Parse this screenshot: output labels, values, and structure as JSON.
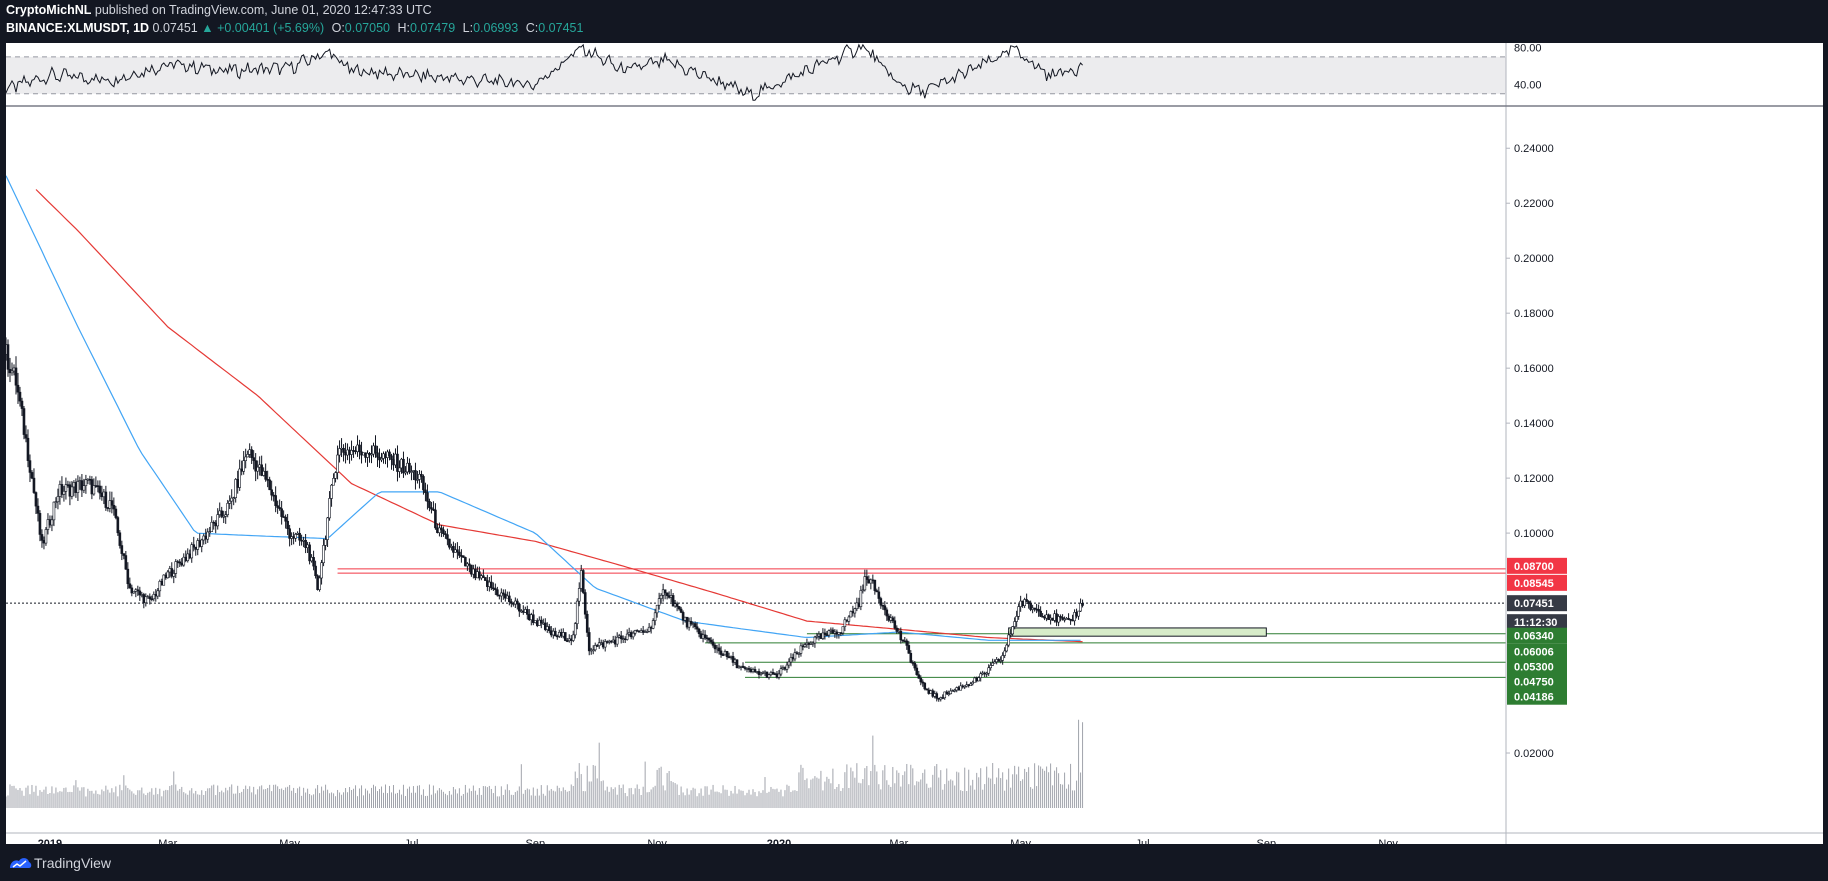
{
  "header": {
    "author": "CryptoMichNL",
    "published_text": "published on TradingView.com, June 01, 2020 12:47:33 UTC",
    "symbol": "BINANCE:XLMUSDT, 1D",
    "last": "0.07451",
    "arrow": "▲",
    "change": "+0.00401 (+5.69%)",
    "o_label": "O:",
    "o_value": "0.07050",
    "h_label": "H:",
    "h_value": "0.07479",
    "l_label": "L:",
    "l_value": "0.06993",
    "c_label": "C:",
    "c_value": "0.07451"
  },
  "footer": {
    "brand": "TradingView",
    "logo_icon": "tradingview-logo-icon"
  },
  "colors": {
    "background": "#131722",
    "pane": "#ffffff",
    "ma_red": "#e53935",
    "ma_blue": "#42a5f5",
    "resistance": "#f23645",
    "support": "#2e7d32",
    "price_label": "#363a45"
  },
  "chart_data": [
    {
      "type": "line",
      "title": "",
      "indicator": "RSI",
      "ylim": [
        20,
        85
      ],
      "y_ticks": [
        "80.00",
        "40.00"
      ],
      "bands": [
        30,
        70
      ],
      "x": [
        "2018-12-10",
        "2019-01-01",
        "2019-02-01",
        "2019-03-01",
        "2019-04-01",
        "2019-05-01",
        "2019-05-20",
        "2019-06-01",
        "2019-07-01",
        "2019-08-01",
        "2019-09-01",
        "2019-09-24",
        "2019-10-15",
        "2019-11-05",
        "2019-12-01",
        "2019-12-18",
        "2020-01-15",
        "2020-02-12",
        "2020-03-01",
        "2020-03-13",
        "2020-04-01",
        "2020-04-28",
        "2020-05-15",
        "2020-06-01"
      ],
      "values": [
        35,
        50,
        45,
        62,
        55,
        58,
        75,
        55,
        50,
        45,
        40,
        80,
        55,
        65,
        44,
        28,
        55,
        82,
        40,
        32,
        50,
        78,
        50,
        60
      ]
    },
    {
      "type": "candlestick",
      "title": "",
      "ylim": [
        0.0,
        0.255
      ],
      "y_ticks": [
        "0.24000",
        "0.22000",
        "0.20000",
        "0.18000",
        "0.16000",
        "0.14000",
        "0.12000",
        "0.10000",
        "0.02000"
      ],
      "x_ticks": [
        "2019",
        "Mar",
        "May",
        "Jul",
        "Sep",
        "Nov",
        "2020",
        "Mar",
        "May",
        "Jul",
        "Sep",
        "Nov"
      ],
      "x_tick_dates": [
        "2019-01-01",
        "2019-03-01",
        "2019-05-01",
        "2019-07-01",
        "2019-09-01",
        "2019-11-01",
        "2020-01-01",
        "2020-03-01",
        "2020-05-01",
        "2020-07-01",
        "2020-09-01",
        "2020-11-01"
      ],
      "x_range": [
        "2018-12-10",
        "2020-12-30"
      ],
      "price_path": {
        "dates": [
          "2018-12-10",
          "2018-12-15",
          "2018-12-22",
          "2018-12-28",
          "2019-01-05",
          "2019-01-20",
          "2019-02-01",
          "2019-02-10",
          "2019-02-20",
          "2019-03-01",
          "2019-03-15",
          "2019-04-01",
          "2019-04-10",
          "2019-04-20",
          "2019-05-01",
          "2019-05-10",
          "2019-05-15",
          "2019-05-25",
          "2019-06-10",
          "2019-06-25",
          "2019-07-05",
          "2019-07-15",
          "2019-08-01",
          "2019-08-20",
          "2019-09-10",
          "2019-09-20",
          "2019-09-24",
          "2019-09-28",
          "2019-10-15",
          "2019-10-28",
          "2019-11-05",
          "2019-11-15",
          "2019-12-01",
          "2019-12-15",
          "2019-12-31",
          "2020-01-15",
          "2020-02-01",
          "2020-02-10",
          "2020-02-14",
          "2020-02-25",
          "2020-03-05",
          "2020-03-12",
          "2020-03-20",
          "2020-04-10",
          "2020-04-22",
          "2020-05-01",
          "2020-05-15",
          "2020-05-25",
          "2020-06-01"
        ],
        "values": [
          0.165,
          0.155,
          0.125,
          0.095,
          0.115,
          0.118,
          0.11,
          0.08,
          0.075,
          0.085,
          0.095,
          0.11,
          0.13,
          0.118,
          0.1,
          0.095,
          0.08,
          0.13,
          0.13,
          0.125,
          0.12,
          0.1,
          0.085,
          0.075,
          0.063,
          0.062,
          0.085,
          0.058,
          0.062,
          0.065,
          0.08,
          0.068,
          0.058,
          0.05,
          0.048,
          0.06,
          0.065,
          0.075,
          0.085,
          0.07,
          0.058,
          0.045,
          0.04,
          0.047,
          0.055,
          0.075,
          0.07,
          0.067,
          0.0745
        ]
      },
      "ma_red": {
        "dates": [
          "2018-12-25",
          "2019-01-15",
          "2019-03-01",
          "2019-04-15",
          "2019-06-01",
          "2019-07-15",
          "2019-09-01",
          "2019-10-15",
          "2019-12-01",
          "2020-01-15",
          "2020-03-01",
          "2020-04-15",
          "2020-06-01"
        ],
        "values": [
          0.225,
          0.21,
          0.175,
          0.15,
          0.118,
          0.103,
          0.097,
          0.088,
          0.078,
          0.068,
          0.065,
          0.062,
          0.0605
        ]
      },
      "ma_blue": {
        "dates": [
          "2018-12-10",
          "2019-01-15",
          "2019-02-15",
          "2019-03-15",
          "2019-04-15",
          "2019-05-20",
          "2019-06-15",
          "2019-07-15",
          "2019-09-01",
          "2019-10-01",
          "2019-11-15",
          "2019-12-15",
          "2020-01-15",
          "2020-03-01",
          "2020-04-15",
          "2020-06-01"
        ],
        "values": [
          0.23,
          0.175,
          0.13,
          0.1,
          0.099,
          0.098,
          0.115,
          0.115,
          0.1,
          0.08,
          0.068,
          0.065,
          0.062,
          0.064,
          0.061,
          0.061
        ]
      },
      "levels": [
        {
          "label": "0.08700",
          "value": 0.087,
          "color": "resistance",
          "from": "2019-05-25"
        },
        {
          "label": "0.08545",
          "value": 0.08545,
          "color": "resistance",
          "from": "2019-05-25"
        },
        {
          "label": "0.07451",
          "value": 0.07451,
          "color": "current",
          "from": "2018-12-10"
        },
        {
          "label": "0.06340",
          "value": 0.0634,
          "color": "support",
          "from": "2020-01-15"
        },
        {
          "label": "0.06006",
          "value": 0.06006,
          "color": "support",
          "from": "2019-11-25"
        },
        {
          "label": "0.05300",
          "value": 0.053,
          "color": "support",
          "from": "2019-12-15"
        },
        {
          "label": "0.04750",
          "value": 0.0475,
          "color": "support",
          "from": "2019-12-15"
        },
        {
          "label": "0.04186",
          "value": 0.04186,
          "color": "support",
          "from": null
        }
      ],
      "countdown": "11:12:30",
      "demand_zone": {
        "from": "2020-04-25",
        "to": "2020-09-01",
        "low": 0.0625,
        "high": 0.0655
      }
    }
  ]
}
